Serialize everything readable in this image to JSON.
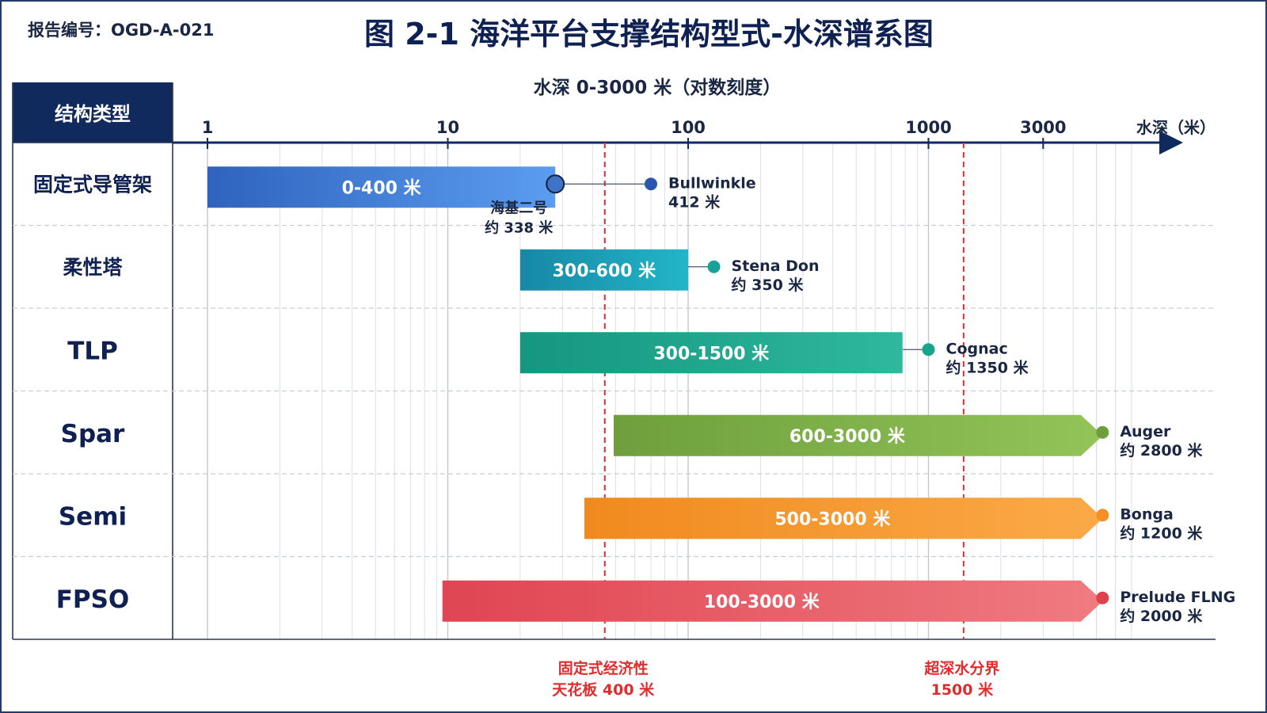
{
  "header": {
    "report_id": "报告编号：OGD-A-021",
    "title": "图 2-1  海洋平台支撑结构型式-水深谱系图"
  },
  "chart_data": {
    "type": "bar",
    "orientation": "horizontal-range",
    "title": "图 2-1  海洋平台支撑结构型式-水深谱系图",
    "xlabel": "水深 0-3000 米（对数刻度）",
    "x_axis_end_label": "水深（米）",
    "y_header": "结构类型",
    "x_scale": "log",
    "xlim": [
      1,
      7000
    ],
    "x_ticks": [
      1,
      10,
      100,
      1000,
      3000
    ],
    "x_tick_labels": [
      "1",
      "10",
      "100",
      "1000",
      "3000"
    ],
    "grid": true,
    "categories": [
      "固定式导管架",
      "柔性塔",
      "TLP",
      "Spar",
      "Semi",
      "FPSO"
    ],
    "ranges": [
      {
        "category": "固定式导管架",
        "start": 1,
        "end": 28,
        "label": "0-400 米",
        "color_start": "#2f63be",
        "color_end": "#5b9df0",
        "arrow": false
      },
      {
        "category": "柔性塔",
        "start": 20,
        "end": 100,
        "label": "300-600 米",
        "color_start": "#1788a6",
        "color_end": "#22b5c8",
        "arrow": false
      },
      {
        "category": "TLP",
        "start": 20,
        "end": 780,
        "label": "300-1500 米",
        "color_start": "#159680",
        "color_end": "#2fb89d",
        "arrow": false
      },
      {
        "category": "Spar",
        "start": 49,
        "end": 4300,
        "label": "600-3000 米",
        "color_start": "#6e9f3c",
        "color_end": "#93c45a",
        "arrow": true
      },
      {
        "category": "Semi",
        "start": 37,
        "end": 4300,
        "label": "500-3000 米",
        "color_start": "#f08a1e",
        "color_end": "#fbaa48",
        "arrow": true
      },
      {
        "category": "FPSO",
        "start": 9.5,
        "end": 4300,
        "label": "100-3000 米",
        "color_start": "#e04552",
        "color_end": "#ef7b80",
        "arrow": true
      }
    ],
    "examples": [
      {
        "category": "固定式导管架",
        "x": 70,
        "name": "Bullwinkle",
        "depth": "412 米",
        "color": "#2b56b0"
      },
      {
        "category": "柔性塔",
        "x": 128,
        "name": "Stena Don",
        "depth": "约 350 米",
        "color": "#17a29a"
      },
      {
        "category": "TLP",
        "x": 1000,
        "name": "Cognac",
        "depth": "约 1350 米",
        "color": "#18a48b"
      },
      {
        "category": "Spar",
        "x": 5300,
        "name": "Auger",
        "depth": "约 2800 米",
        "color": "#6e9f3c"
      },
      {
        "category": "Semi",
        "x": 5300,
        "name": "Bonga",
        "depth": "约 1200 米",
        "color": "#f39126"
      },
      {
        "category": "FPSO",
        "x": 5300,
        "name": "Prelude FLNG",
        "depth": "约 2000 米",
        "color": "#e0404e"
      }
    ],
    "bar_end_marker": {
      "category": "固定式导管架",
      "x": 28,
      "name": "海基二号",
      "depth": "约 338 米"
    },
    "reference_lines": [
      {
        "x": 45,
        "label_line1": "固定式经济性",
        "label_line2": "天花板 400 米",
        "color": "#e02c2c"
      },
      {
        "x": 1400,
        "label_line1": "超深水分界",
        "label_line2": "1500 米",
        "color": "#e02c2c"
      }
    ],
    "colors": {
      "axis": "#0f2a5c",
      "header_bg": "#102a5e",
      "grid": "#d8dce2",
      "row_divider": "#c9ced6"
    }
  }
}
